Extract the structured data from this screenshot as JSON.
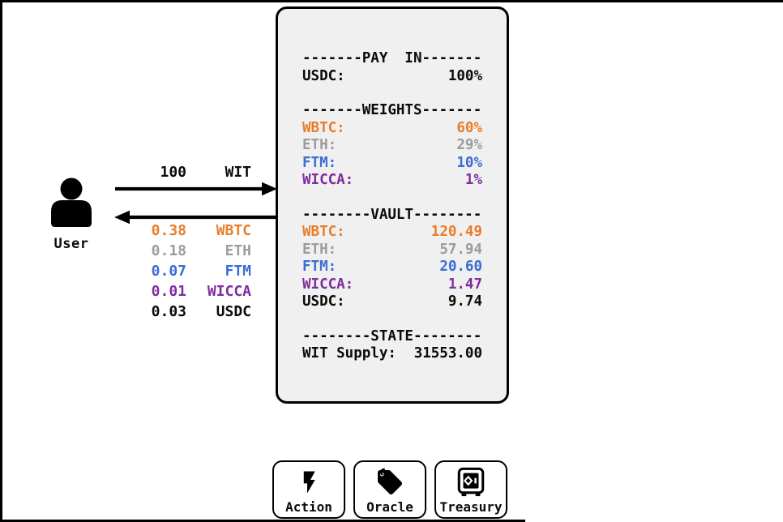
{
  "colors": {
    "orange": "#E87E2D",
    "gray": "#9C9C9C",
    "blue": "#3B6DD3",
    "purple": "#7F2D9E",
    "black": "#0B0B0B",
    "panel_bg": "#F0F0F0"
  },
  "user": {
    "label": "User"
  },
  "flow_in": {
    "amount": "100",
    "token": "WIT"
  },
  "flow_out": [
    {
      "amount": "0.38",
      "token": "WBTC",
      "color": "orange"
    },
    {
      "amount": "0.18",
      "token": "ETH",
      "color": "gray"
    },
    {
      "amount": "0.07",
      "token": "FTM",
      "color": "blue"
    },
    {
      "amount": "0.01",
      "token": "WICCA",
      "color": "purple"
    },
    {
      "amount": "0.03",
      "token": "USDC",
      "color": "black"
    }
  ],
  "panel": {
    "sections": [
      {
        "name": "pay-in",
        "header": "-------PAY  IN-------",
        "rows": [
          {
            "label": "USDC:",
            "value": "100%",
            "color": "black"
          }
        ]
      },
      {
        "name": "weights",
        "header": "-------WEIGHTS-------",
        "rows": [
          {
            "label": "WBTC:",
            "value": "60%",
            "color": "orange"
          },
          {
            "label": "ETH:",
            "value": "29%",
            "color": "gray"
          },
          {
            "label": "FTM:",
            "value": "10%",
            "color": "blue"
          },
          {
            "label": "WICCA:",
            "value": "1%",
            "color": "purple"
          }
        ]
      },
      {
        "name": "vault",
        "header": "--------VAULT--------",
        "rows": [
          {
            "label": "WBTC:",
            "value": "120.49",
            "color": "orange"
          },
          {
            "label": "ETH:",
            "value": "57.94",
            "color": "gray"
          },
          {
            "label": "FTM:",
            "value": "20.60",
            "color": "blue"
          },
          {
            "label": "WICCA:",
            "value": "1.47",
            "color": "purple"
          },
          {
            "label": "USDC:",
            "value": "9.74",
            "color": "black"
          }
        ]
      },
      {
        "name": "state",
        "header": "--------STATE--------",
        "rows": [
          {
            "label": "WIT Supply:",
            "value": "31553.00",
            "color": "black"
          }
        ]
      }
    ]
  },
  "modules": [
    {
      "label": "Action",
      "icon": "lightning-icon"
    },
    {
      "label": "Oracle",
      "icon": "tag-icon"
    },
    {
      "label": "Treasury",
      "icon": "safe-icon"
    }
  ]
}
